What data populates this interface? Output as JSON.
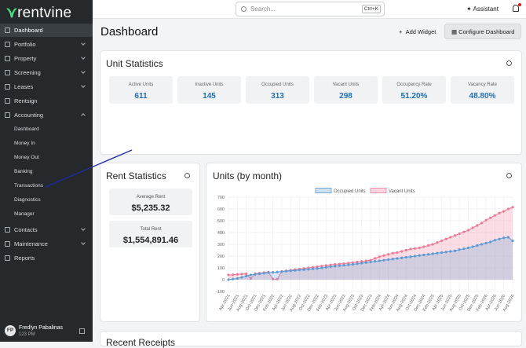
{
  "sidebar": {
    "logo": "rentvine",
    "nav": [
      "Dashboard",
      "Portfolio",
      "Property",
      "Screening",
      "Leases",
      "Rentsign",
      "Accounting"
    ],
    "accounting_sub": [
      "Dashboard",
      "Money In",
      "Money Out",
      "Banking",
      "Transactions",
      "Diagnostics",
      "Manager"
    ],
    "nav_bottom": [
      "Contacts",
      "Maintenance",
      "Reports"
    ],
    "user": {
      "initials": "FP",
      "name": "Fredlyn Pabalinas",
      "time": "123 PM"
    }
  },
  "topbar": {
    "search": "Search...",
    "shortcut": "Ctrl+K",
    "assistant": "Assistant"
  },
  "header": {
    "title": "Dashboard",
    "add_widget": "Add Widget",
    "configure": "Configure Dashboard"
  },
  "unit_statistics": {
    "title": "Unit Statistics",
    "stats": [
      {
        "label": "Active Units",
        "value": "611"
      },
      {
        "label": "Inactive Units",
        "value": "145"
      },
      {
        "label": "Occupied Units",
        "value": "313"
      },
      {
        "label": "Vacant Units",
        "value": "298"
      },
      {
        "label": "Occupancy Rate",
        "value": "51.20%"
      },
      {
        "label": "Vacancy Rate",
        "value": "48.80%"
      }
    ]
  },
  "rent_statistics": {
    "title": "Rent Statistics",
    "stats": [
      {
        "label": "Average Rent",
        "value": "$5,235.32"
      },
      {
        "label": "Total Rent",
        "value": "$1,554,891.46"
      }
    ]
  },
  "recent_receipts": {
    "title": "Recent Receipts"
  },
  "chart_data": {
    "type": "line",
    "title": "Units (by month)",
    "categories": [
      "Apr-2021",
      null,
      "Jun-2021",
      null,
      "Aug-2021",
      null,
      "Oct-2021",
      null,
      "Dec-2021",
      null,
      "Feb-2022",
      null,
      "Apr-2022",
      null,
      "Jun-2022",
      null,
      "Aug-2022",
      null,
      "Oct-2022",
      null,
      "Dec-2022",
      null,
      "Feb-2023",
      null,
      "Apr-2023",
      null,
      "Jun-2023",
      null,
      "Aug-2023",
      null,
      "Oct-2023",
      null,
      "Dec-2023",
      null,
      "Feb-2024",
      null,
      "Apr-2024",
      null,
      "Jun-2024",
      null,
      "Aug-2024",
      null,
      "Oct-2024",
      null,
      "Dec-2024",
      null,
      "Feb-2025",
      null,
      "Apr-2025",
      null,
      "Jun-2025",
      null,
      "Aug-2025",
      null,
      "Oct-2025",
      null,
      "Dec-2025",
      null,
      "Feb-2026",
      null,
      "Apr-2026",
      null,
      "Jun-2026",
      null,
      "Aug-2026"
    ],
    "series": [
      {
        "name": "Occupied Units",
        "color": "#5b9bd5",
        "values": [
          0,
          5,
          10,
          20,
          30,
          40,
          45,
          50,
          55,
          60,
          62,
          65,
          68,
          72,
          75,
          78,
          82,
          85,
          88,
          92,
          95,
          100,
          105,
          110,
          115,
          118,
          122,
          126,
          130,
          135,
          140,
          145,
          150,
          155,
          160,
          165,
          170,
          175,
          180,
          185,
          190,
          195,
          200,
          205,
          210,
          215,
          220,
          225,
          230,
          235,
          240,
          245,
          255,
          262,
          270,
          280,
          290,
          300,
          310,
          320,
          335,
          345,
          355,
          360,
          330
        ]
      },
      {
        "name": "Vacant Units",
        "color": "#f07a96",
        "values": [
          40,
          42,
          45,
          48,
          50,
          10,
          52,
          55,
          60,
          65,
          5,
          5,
          70,
          75,
          80,
          85,
          90,
          95,
          100,
          105,
          110,
          115,
          120,
          125,
          130,
          133,
          136,
          140,
          145,
          150,
          155,
          160,
          165,
          180,
          195,
          205,
          215,
          225,
          230,
          240,
          250,
          260,
          265,
          270,
          280,
          290,
          300,
          315,
          330,
          345,
          360,
          375,
          390,
          405,
          420,
          440,
          460,
          480,
          505,
          525,
          545,
          565,
          580,
          600,
          615
        ]
      }
    ],
    "ylim": [
      -100,
      700
    ],
    "yticks": [
      -100,
      0,
      100,
      200,
      300,
      400,
      500,
      600,
      700
    ],
    "grid": true,
    "legend": "top"
  }
}
